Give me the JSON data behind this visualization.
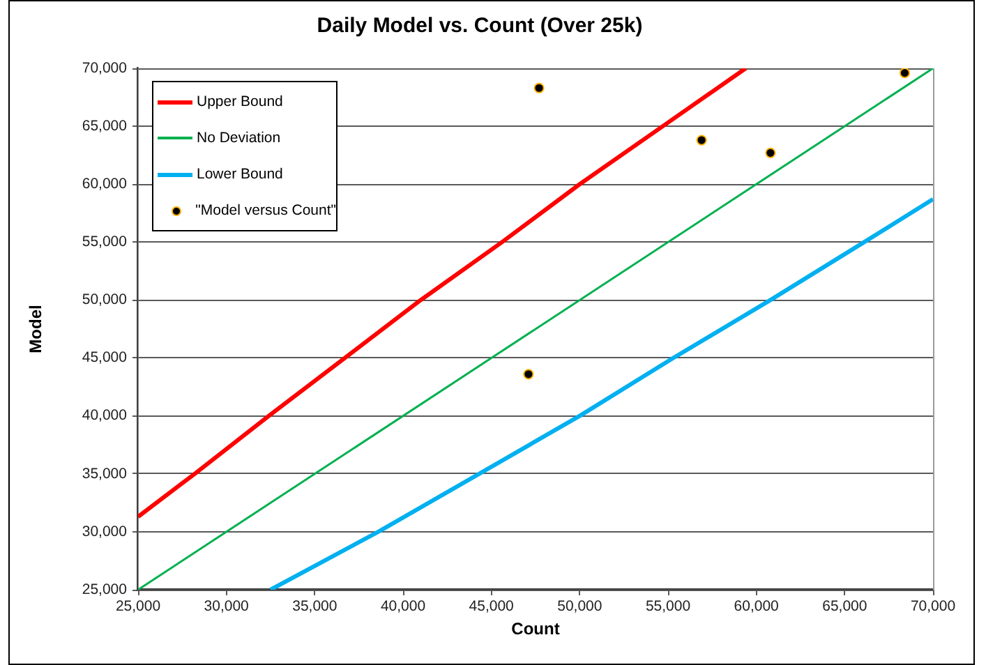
{
  "chart_data": {
    "type": "scatter",
    "title": "Daily Model vs. Count (Over 25k)",
    "xlabel": "Count",
    "ylabel": "Model",
    "xlim": [
      25000,
      70000
    ],
    "ylim": [
      25000,
      70000
    ],
    "xticks": [
      {
        "value": 25000,
        "label": "25,000"
      },
      {
        "value": 30000,
        "label": "30,000"
      },
      {
        "value": 35000,
        "label": "35,000"
      },
      {
        "value": 40000,
        "label": "40,000"
      },
      {
        "value": 45000,
        "label": "45,000"
      },
      {
        "value": 50000,
        "label": "50,000"
      },
      {
        "value": 55000,
        "label": "55,000"
      },
      {
        "value": 60000,
        "label": "60,000"
      },
      {
        "value": 65000,
        "label": "65,000"
      },
      {
        "value": 70000,
        "label": "70,000"
      }
    ],
    "yticks": [
      {
        "value": 25000,
        "label": "25,000"
      },
      {
        "value": 30000,
        "label": "30,000"
      },
      {
        "value": 35000,
        "label": "35,000"
      },
      {
        "value": 40000,
        "label": "40,000"
      },
      {
        "value": 45000,
        "label": "45,000"
      },
      {
        "value": 50000,
        "label": "50,000"
      },
      {
        "value": 55000,
        "label": "55,000"
      },
      {
        "value": 60000,
        "label": "60,000"
      },
      {
        "value": 65000,
        "label": "65,000"
      },
      {
        "value": 70000,
        "label": "70,000"
      }
    ],
    "grid": "y",
    "legend": "top left",
    "series": [
      {
        "name": "Upper Bound",
        "type": "line",
        "marker": "none",
        "color": "#ff0000",
        "x": [
          25000,
          28200,
          32400,
          36700,
          41000,
          45600,
          50000,
          54700,
          59400
        ],
        "values": [
          31300,
          35000,
          40000,
          45000,
          50000,
          55000,
          60000,
          65000,
          70000
        ]
      },
      {
        "name": "No Deviation",
        "type": "line",
        "marker": "none",
        "color": "#00b050",
        "x": [
          25000,
          70000
        ],
        "values": [
          25000,
          70000
        ]
      },
      {
        "name": "Lower Bound",
        "type": "line",
        "marker": "none",
        "color": "#00b0f0",
        "x": [
          32500,
          38600,
          44300,
          50000,
          55300,
          60800,
          66100,
          70000
        ],
        "values": [
          25000,
          30000,
          35000,
          40000,
          45000,
          50000,
          55000,
          58700
        ]
      },
      {
        "name": "\"Model versus Count\"",
        "type": "scatter",
        "marker": "circle",
        "color": "#000000",
        "x": [
          47100,
          47700,
          56900,
          60800,
          68400
        ],
        "values": [
          43600,
          68300,
          63800,
          62700,
          69600
        ]
      }
    ]
  }
}
